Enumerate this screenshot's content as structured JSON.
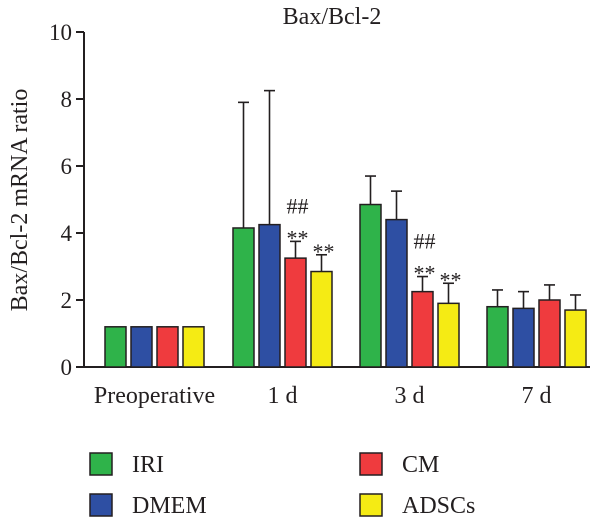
{
  "chart_data": {
    "type": "bar",
    "title": "Bax/Bcl-2",
    "ylabel": "Bax/Bcl-2 mRNA ratio",
    "xlabel": "",
    "ylim": [
      0,
      10
    ],
    "y_ticks": [
      {
        "value": 0,
        "label": "0"
      },
      {
        "value": 1,
        "label": "2"
      },
      {
        "value": 2,
        "label": "4"
      },
      {
        "value": 3,
        "label": "6"
      },
      {
        "value": 4,
        "label": "8"
      },
      {
        "value": 5,
        "label": "10"
      }
    ],
    "y_axis_note": "tick labels as printed on the axis; bar values below are in printed axis units",
    "categories": [
      "Preoperative",
      "1 d",
      "3 d",
      "7 d"
    ],
    "series": [
      {
        "name": "IRI",
        "color": "#2fb34a",
        "values": [
          1.2,
          4.15,
          4.85,
          1.8
        ],
        "errors": [
          0,
          3.75,
          0.85,
          0.5
        ]
      },
      {
        "name": "DMEM",
        "color": "#2e4fa3",
        "values": [
          1.2,
          4.25,
          4.4,
          1.75
        ],
        "errors": [
          0,
          4.0,
          0.85,
          0.5
        ]
      },
      {
        "name": "CM",
        "color": "#ef3b3e",
        "values": [
          1.2,
          3.25,
          2.25,
          2.0
        ],
        "errors": [
          0,
          0.5,
          0.45,
          0.45
        ]
      },
      {
        "name": "ADSCs",
        "color": "#f5eb14",
        "values": [
          1.2,
          2.85,
          1.9,
          1.7
        ],
        "errors": [
          0,
          0.5,
          0.6,
          0.45
        ]
      }
    ],
    "annotations": [
      {
        "category": "1 d",
        "series": "CM",
        "lines": [
          "##",
          "**"
        ]
      },
      {
        "category": "1 d",
        "series": "ADSCs",
        "lines": [
          "**"
        ]
      },
      {
        "category": "3 d",
        "series": "CM",
        "lines": [
          "##",
          "**"
        ]
      },
      {
        "category": "3 d",
        "series": "ADSCs",
        "lines": [
          "**"
        ]
      }
    ],
    "legend": {
      "placement": "bottom",
      "items": [
        "IRI",
        "CM",
        "DMEM",
        "ADSCs"
      ]
    }
  }
}
